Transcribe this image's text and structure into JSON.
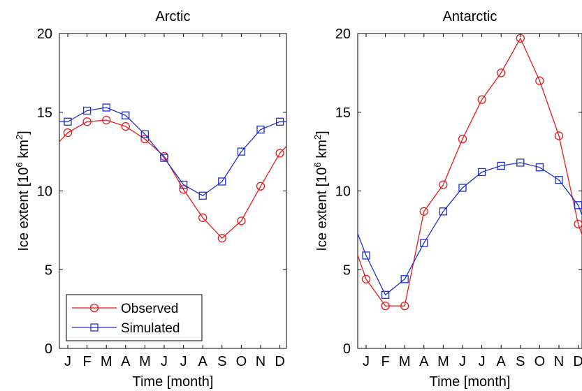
{
  "legend": {
    "observed_label": "Observed",
    "simulated_label": "Simulated"
  },
  "colors": {
    "observed": "#e41a1c",
    "simulated": "#1f2fd0",
    "axis": "#000000"
  },
  "chart_data": [
    {
      "type": "line",
      "title": "Arctic",
      "xlabel": "Time [month]",
      "ylabel": "Ice extent [10^6 km^2]",
      "ylabel_parts": {
        "pre": "Ice extent [10",
        "exp1": "6",
        "mid": " km",
        "exp2": "2",
        "post": "]"
      },
      "ylim": [
        0,
        20
      ],
      "yticks": [
        0,
        5,
        10,
        15,
        20
      ],
      "categories": [
        "J",
        "F",
        "M",
        "A",
        "M",
        "J",
        "J",
        "A",
        "S",
        "O",
        "N",
        "D"
      ],
      "grid": false,
      "legend_position": "bottom-left",
      "series": [
        {
          "name": "Observed",
          "marker": "circle",
          "color": "#e41a1c",
          "values": [
            13.7,
            14.4,
            14.5,
            14.1,
            13.3,
            12.2,
            10.1,
            8.3,
            7.0,
            8.1,
            10.3,
            12.4
          ]
        },
        {
          "name": "Simulated",
          "marker": "square",
          "color": "#1f2fd0",
          "values": [
            14.4,
            15.1,
            15.3,
            14.8,
            13.6,
            12.1,
            10.4,
            9.7,
            10.6,
            12.5,
            13.9,
            14.4
          ]
        }
      ]
    },
    {
      "type": "line",
      "title": "Antarctic",
      "xlabel": "Time [month]",
      "ylabel": "Ice extent [10^6 km^2]",
      "ylabel_parts": {
        "pre": "Ice extent [10",
        "exp1": "6",
        "mid": " km",
        "exp2": "2",
        "post": "]"
      },
      "ylim": [
        0,
        20
      ],
      "yticks": [
        0,
        5,
        10,
        15,
        20
      ],
      "categories": [
        "J",
        "F",
        "M",
        "A",
        "M",
        "J",
        "J",
        "A",
        "S",
        "O",
        "N",
        "D"
      ],
      "grid": false,
      "legend_position": "none",
      "series": [
        {
          "name": "Observed",
          "marker": "circle",
          "color": "#e41a1c",
          "values": [
            4.4,
            2.7,
            2.7,
            8.7,
            10.4,
            13.3,
            15.8,
            17.5,
            19.7,
            17.0,
            13.5,
            7.9
          ]
        },
        {
          "name": "Simulated",
          "marker": "square",
          "color": "#1f2fd0",
          "values": [
            5.9,
            3.4,
            4.4,
            6.7,
            8.7,
            10.2,
            11.2,
            11.6,
            11.8,
            11.5,
            10.7,
            9.1
          ]
        }
      ]
    }
  ]
}
